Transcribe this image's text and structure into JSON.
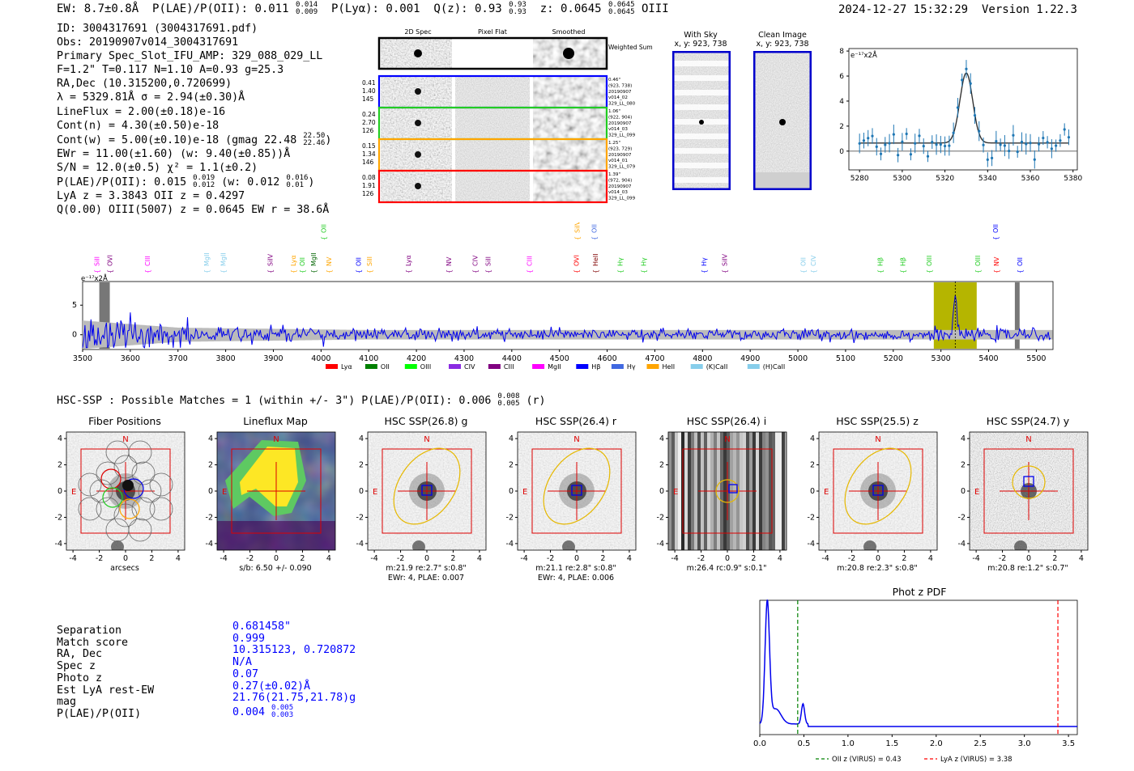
{
  "header": {
    "ew": "EW: 8.7±0.8Å",
    "plae_poii": "P(LAE)/P(OII): 0.011",
    "plae_poii_hi": "0.014",
    "plae_poii_lo": "0.009",
    "plya": "P(Lyα): 0.001",
    "qz": "Q(z): 0.93",
    "qz_hi": "0.93",
    "qz_lo": "0.93",
    "z": "z: 0.0645",
    "z_hi": "0.0645",
    "z_lo": "0.0645",
    "line": "OIII",
    "datetime": "2024-12-27 15:32:29",
    "version": "Version 1.22.3"
  },
  "detail": {
    "id": "ID: 3004317691 (3004317691.pdf)",
    "obs": "Obs: 20190907v014_3004317691",
    "primary": "Primary Spec_Slot_IFU_AMP: 329_088_029_LL",
    "fwhm": "F=1.2\"  T=0.117  N=1.10  A=0.93  g=25.3",
    "radec": "RA,Dec (10.315200,0.720699)",
    "lambda": "λ = 5329.81Å  σ = 2.94(±0.30)Å",
    "lineflux": "LineFlux = 2.00(±0.18)e-16",
    "contn": "Cont(n) = 4.30(±0.50)e-18",
    "contw": "Cont(w) = 5.00(±0.10)e-18 (gmag 22.48",
    "contw_hi": "22.50",
    "contw_lo": "22.46",
    "ewr": "EWr = 11.00(±1.60) (w: 9.40(±0.85))Å",
    "sn": "S/N = 12.0(±0.5)  χ² = 1.1(±0.2)",
    "plae": "P(LAE)/P(OII): 0.015",
    "plae_hi": "0.019",
    "plae_lo": "0.012",
    "plae_w": "(w: 0.012",
    "plae_w_hi": "0.016",
    "plae_w_lo": "0.01",
    "lya_z": "LyA z = 3.3843  OII z = 0.4297",
    "q_oiii": "Q(0.00) OIII(5007) z = 0.0645  EW r = 38.6Å"
  },
  "spec2d": {
    "col_labels": [
      "2D Spec",
      "Pixel Flat",
      "Smoothed"
    ],
    "weighted_label": "Weighted Sum",
    "rows": [
      {
        "left": [
          "0.41",
          "1.40",
          "145"
        ],
        "right": [
          "0.46\"",
          "(923, 738)",
          "20190907",
          "v014_02",
          "329_LL_080"
        ],
        "color": "#0000ff"
      },
      {
        "left": [
          "0.24",
          "2.70",
          "126"
        ],
        "right": [
          "1.06\"",
          "(922, 904)",
          "20190907",
          "v014_03",
          "329_LL_099"
        ],
        "color": "#22cc22"
      },
      {
        "left": [
          "0.15",
          "1.34",
          "146"
        ],
        "right": [
          "1.25\"",
          "(923, 729)",
          "20190907",
          "v014_01",
          "329_LL_079"
        ],
        "color": "#ffa500"
      },
      {
        "left": [
          "0.08",
          "1.91",
          "126"
        ],
        "right": [
          "1.39\"",
          "(972, 904)",
          "20190907",
          "v014_03",
          "329_LL_099"
        ],
        "color": "#ff0000"
      }
    ]
  },
  "sky": {
    "with_title": "With Sky",
    "with_sub": "x, y: 923, 738",
    "clean_title": "Clean Image",
    "clean_sub": "x, y: 923, 738"
  },
  "zoom_plot": {
    "unit": "e⁻¹⁷x2Å",
    "xticks": [
      "5280",
      "5300",
      "5320",
      "5340",
      "5360",
      "5380"
    ],
    "yticks": [
      "0",
      "2",
      "4",
      "6",
      "8"
    ],
    "xlim": [
      5275,
      5382
    ],
    "ylim": [
      -1.5,
      8.2
    ],
    "peak": 5330,
    "amp": 5.6,
    "sigma": 3
  },
  "full_spec": {
    "unit": "e⁻¹⁷x2Å",
    "xticks": [
      "3500",
      "3600",
      "3700",
      "3800",
      "3900",
      "4000",
      "4100",
      "4200",
      "4300",
      "4400",
      "4500",
      "4600",
      "4700",
      "4800",
      "4900",
      "5000",
      "5100",
      "5200",
      "5300",
      "5400",
      "5500"
    ],
    "yticks": [
      "0",
      "5"
    ],
    "xlim": [
      3500,
      5535
    ],
    "ylim": [
      -2.5,
      9
    ],
    "highlight": [
      5285,
      5375
    ],
    "peak": 5330,
    "lines": [
      {
        "label": "SiII",
        "wave": 3530,
        "color": "#ff00ff",
        "row": 1
      },
      {
        "label": "OVI",
        "wave": 3557,
        "color": "#800080",
        "row": 1
      },
      {
        "label": "CIII",
        "wave": 3636,
        "color": "#ff00ff",
        "row": 1
      },
      {
        "label": "MgII",
        "wave": 3760,
        "color": "#87ceeb",
        "row": 1
      },
      {
        "label": "MgII",
        "wave": 3795,
        "color": "#87ceeb",
        "row": 1
      },
      {
        "label": "SiIV",
        "wave": 3893,
        "color": "#800080",
        "row": 1
      },
      {
        "label": "Lyα",
        "wave": 3942,
        "color": "#ffa500",
        "row": 1
      },
      {
        "label": "OII",
        "wave": 3960,
        "color": "#22cc22",
        "row": 1
      },
      {
        "label": "MgII",
        "wave": 3984,
        "color": "#006400",
        "row": 1
      },
      {
        "label": "NV",
        "wave": 4016,
        "color": "#ffa500",
        "row": 1
      },
      {
        "label": "OII",
        "wave": 4005,
        "color": "#22cc22",
        "row": 0
      },
      {
        "label": "OII",
        "wave": 4078,
        "color": "#0000ff",
        "row": 1
      },
      {
        "label": "SiII",
        "wave": 4101,
        "color": "#ffa500",
        "row": 1
      },
      {
        "label": "Lyα",
        "wave": 4183,
        "color": "#800080",
        "row": 1
      },
      {
        "label": "NV",
        "wave": 4268,
        "color": "#800080",
        "row": 1
      },
      {
        "label": "CIV",
        "wave": 4323,
        "color": "#800080",
        "row": 1
      },
      {
        "label": "SiII",
        "wave": 4350,
        "color": "#800080",
        "row": 1
      },
      {
        "label": "CIII",
        "wave": 4437,
        "color": "#ff00ff",
        "row": 1
      },
      {
        "label": "OVI",
        "wave": 4535,
        "color": "#ff0000",
        "row": 1
      },
      {
        "label": "SiIV",
        "wave": 4537,
        "color": "#ffa500",
        "row": 0
      },
      {
        "label": "OII",
        "wave": 4573,
        "color": "#4169e1",
        "row": 0
      },
      {
        "label": "HeII",
        "wave": 4575,
        "color": "#800000",
        "row": 1
      },
      {
        "label": "Hγ",
        "wave": 4627,
        "color": "#22cc22",
        "row": 1
      },
      {
        "label": "Hγ",
        "wave": 4676,
        "color": "#22cc22",
        "row": 1
      },
      {
        "label": "Hγ",
        "wave": 4803,
        "color": "#0000ff",
        "row": 1
      },
      {
        "label": "SiIV",
        "wave": 4846,
        "color": "#800080",
        "row": 1
      },
      {
        "label": "OII",
        "wave": 5011,
        "color": "#87ceeb",
        "row": 1
      },
      {
        "label": "CIV",
        "wave": 5032,
        "color": "#87ceeb",
        "row": 1
      },
      {
        "label": "Hβ",
        "wave": 5172,
        "color": "#22cc22",
        "row": 1
      },
      {
        "label": "Hβ",
        "wave": 5220,
        "color": "#22cc22",
        "row": 1
      },
      {
        "label": "OIII",
        "wave": 5275,
        "color": "#22cc22",
        "row": 1
      },
      {
        "label": "OIII",
        "wave": 5377,
        "color": "#22cc22",
        "row": 1
      },
      {
        "label": "NV",
        "wave": 5416,
        "color": "#ff0000",
        "row": 1
      },
      {
        "label": "OII",
        "wave": 5414,
        "color": "#0000ff",
        "row": 0
      },
      {
        "label": "OII",
        "wave": 5465,
        "color": "#0000ff",
        "row": 1
      }
    ],
    "legend": [
      {
        "label": "Lyα",
        "color": "#ff0000"
      },
      {
        "label": "OII",
        "color": "#008000"
      },
      {
        "label": "OIII",
        "color": "#00ff00"
      },
      {
        "label": "CIV",
        "color": "#8a2be2"
      },
      {
        "label": "CIII",
        "color": "#800080"
      },
      {
        "label": "MgII",
        "color": "#ff00ff"
      },
      {
        "label": "Hβ",
        "color": "#0000ff"
      },
      {
        "label": "Hγ",
        "color": "#4169e1"
      },
      {
        "label": "HeII",
        "color": "#ffa500"
      },
      {
        "label": "(K)CaII",
        "color": "#87ceeb"
      },
      {
        "label": "(H)CaII",
        "color": "#87ceeb"
      }
    ]
  },
  "hsc": {
    "summary": "HSC-SSP : Possible Matches = 1 (within +/- 3\")  P(LAE)/P(OII): 0.006",
    "summary_hi": "0.008",
    "summary_lo": "0.005",
    "summary_band": "(r)",
    "panels": [
      {
        "title": "Fiber Positions",
        "line1": "arcsecs",
        "line2": "",
        "kind": "fiber"
      },
      {
        "title": "Lineflux Map",
        "line1": "s/b: 6.50 +/- 0.090",
        "line2": "",
        "kind": "lineflux"
      },
      {
        "title": "HSC SSP(26.8) g",
        "line1": "m:21.9  re:2.7\"  s:0.8\"",
        "line2": "EWr: 4, PLAE: 0.007",
        "kind": "galaxy"
      },
      {
        "title": "HSC SSP(26.4) r",
        "line1": "m:21.1  re:2.8\"  s:0.8\"",
        "line2": "EWr: 4, PLAE: 0.006",
        "kind": "galaxy"
      },
      {
        "title": "HSC SSP(26.4) i",
        "line1": "m:26.4  rc:0.9\"  s:0.1\"",
        "line2": "",
        "kind": "stripes"
      },
      {
        "title": "HSC SSP(25.5) z",
        "line1": "m:20.8  re:2.3\"  s:0.8\"",
        "line2": "",
        "kind": "galaxy"
      },
      {
        "title": "HSC SSP(24.7) y",
        "line1": "m:20.8  re:1.2\"  s:0.7\"",
        "line2": "",
        "kind": "noisy"
      }
    ],
    "axis_ticks": [
      "-4",
      "-2",
      "0",
      "2",
      "4"
    ],
    "north": "N",
    "east": "E"
  },
  "match": {
    "labels": [
      "Separation",
      "Match score",
      "RA, Dec",
      "Spec z",
      "Photo z",
      "Est LyA rest-EW",
      "mag",
      "P(LAE)/P(OII)"
    ],
    "values": [
      "0.681458\"",
      "0.999",
      "10.315123, 0.720872",
      "N/A",
      "0.07",
      "0.27(±0.02)Å",
      "21.76(21.75,21.78)g",
      "0.004"
    ],
    "plae_hi": "0.005",
    "plae_lo": "0.003"
  },
  "photz": {
    "title": "Phot z PDF",
    "xticks": [
      "0.0",
      "0.5",
      "1.0",
      "1.5",
      "2.0",
      "2.5",
      "3.0",
      "3.5"
    ],
    "xlim": [
      0,
      3.6
    ],
    "oii_z": 0.43,
    "lya_z": 3.38,
    "legend_oii": "OII z (VIRUS) = 0.43",
    "legend_lya": "LyA z (VIRUS) = 3.38"
  },
  "chart_data": [
    {
      "type": "line",
      "title": "",
      "xlabel": "",
      "ylabel": "e-17 x2Å",
      "x": [
        5280,
        5290,
        5300,
        5310,
        5320,
        5325,
        5330,
        5335,
        5340,
        5350,
        5360,
        5370,
        5380
      ],
      "series": [
        {
          "name": "flux",
          "values": [
            1.0,
            0.4,
            0.3,
            0.6,
            1.8,
            4.6,
            6.6,
            3.4,
            0.6,
            0.2,
            0.1,
            1.2,
            2.0
          ]
        }
      ],
      "ylim": [
        -1.5,
        8.2
      ]
    },
    {
      "type": "line",
      "title": "Phot z PDF",
      "xlabel": "",
      "ylabel": "",
      "x": [
        0.0,
        0.05,
        0.08,
        0.12,
        0.2,
        0.3,
        0.45,
        0.5,
        0.6,
        1.0,
        2.0,
        3.0,
        3.6
      ],
      "series": [
        {
          "name": "PDF",
          "values": [
            0.05,
            0.7,
            1.0,
            0.55,
            0.08,
            0.03,
            0.18,
            0.06,
            0.01,
            0.0,
            0.0,
            0.0,
            0.0
          ]
        }
      ],
      "xlim": [
        0,
        3.6
      ]
    }
  ]
}
